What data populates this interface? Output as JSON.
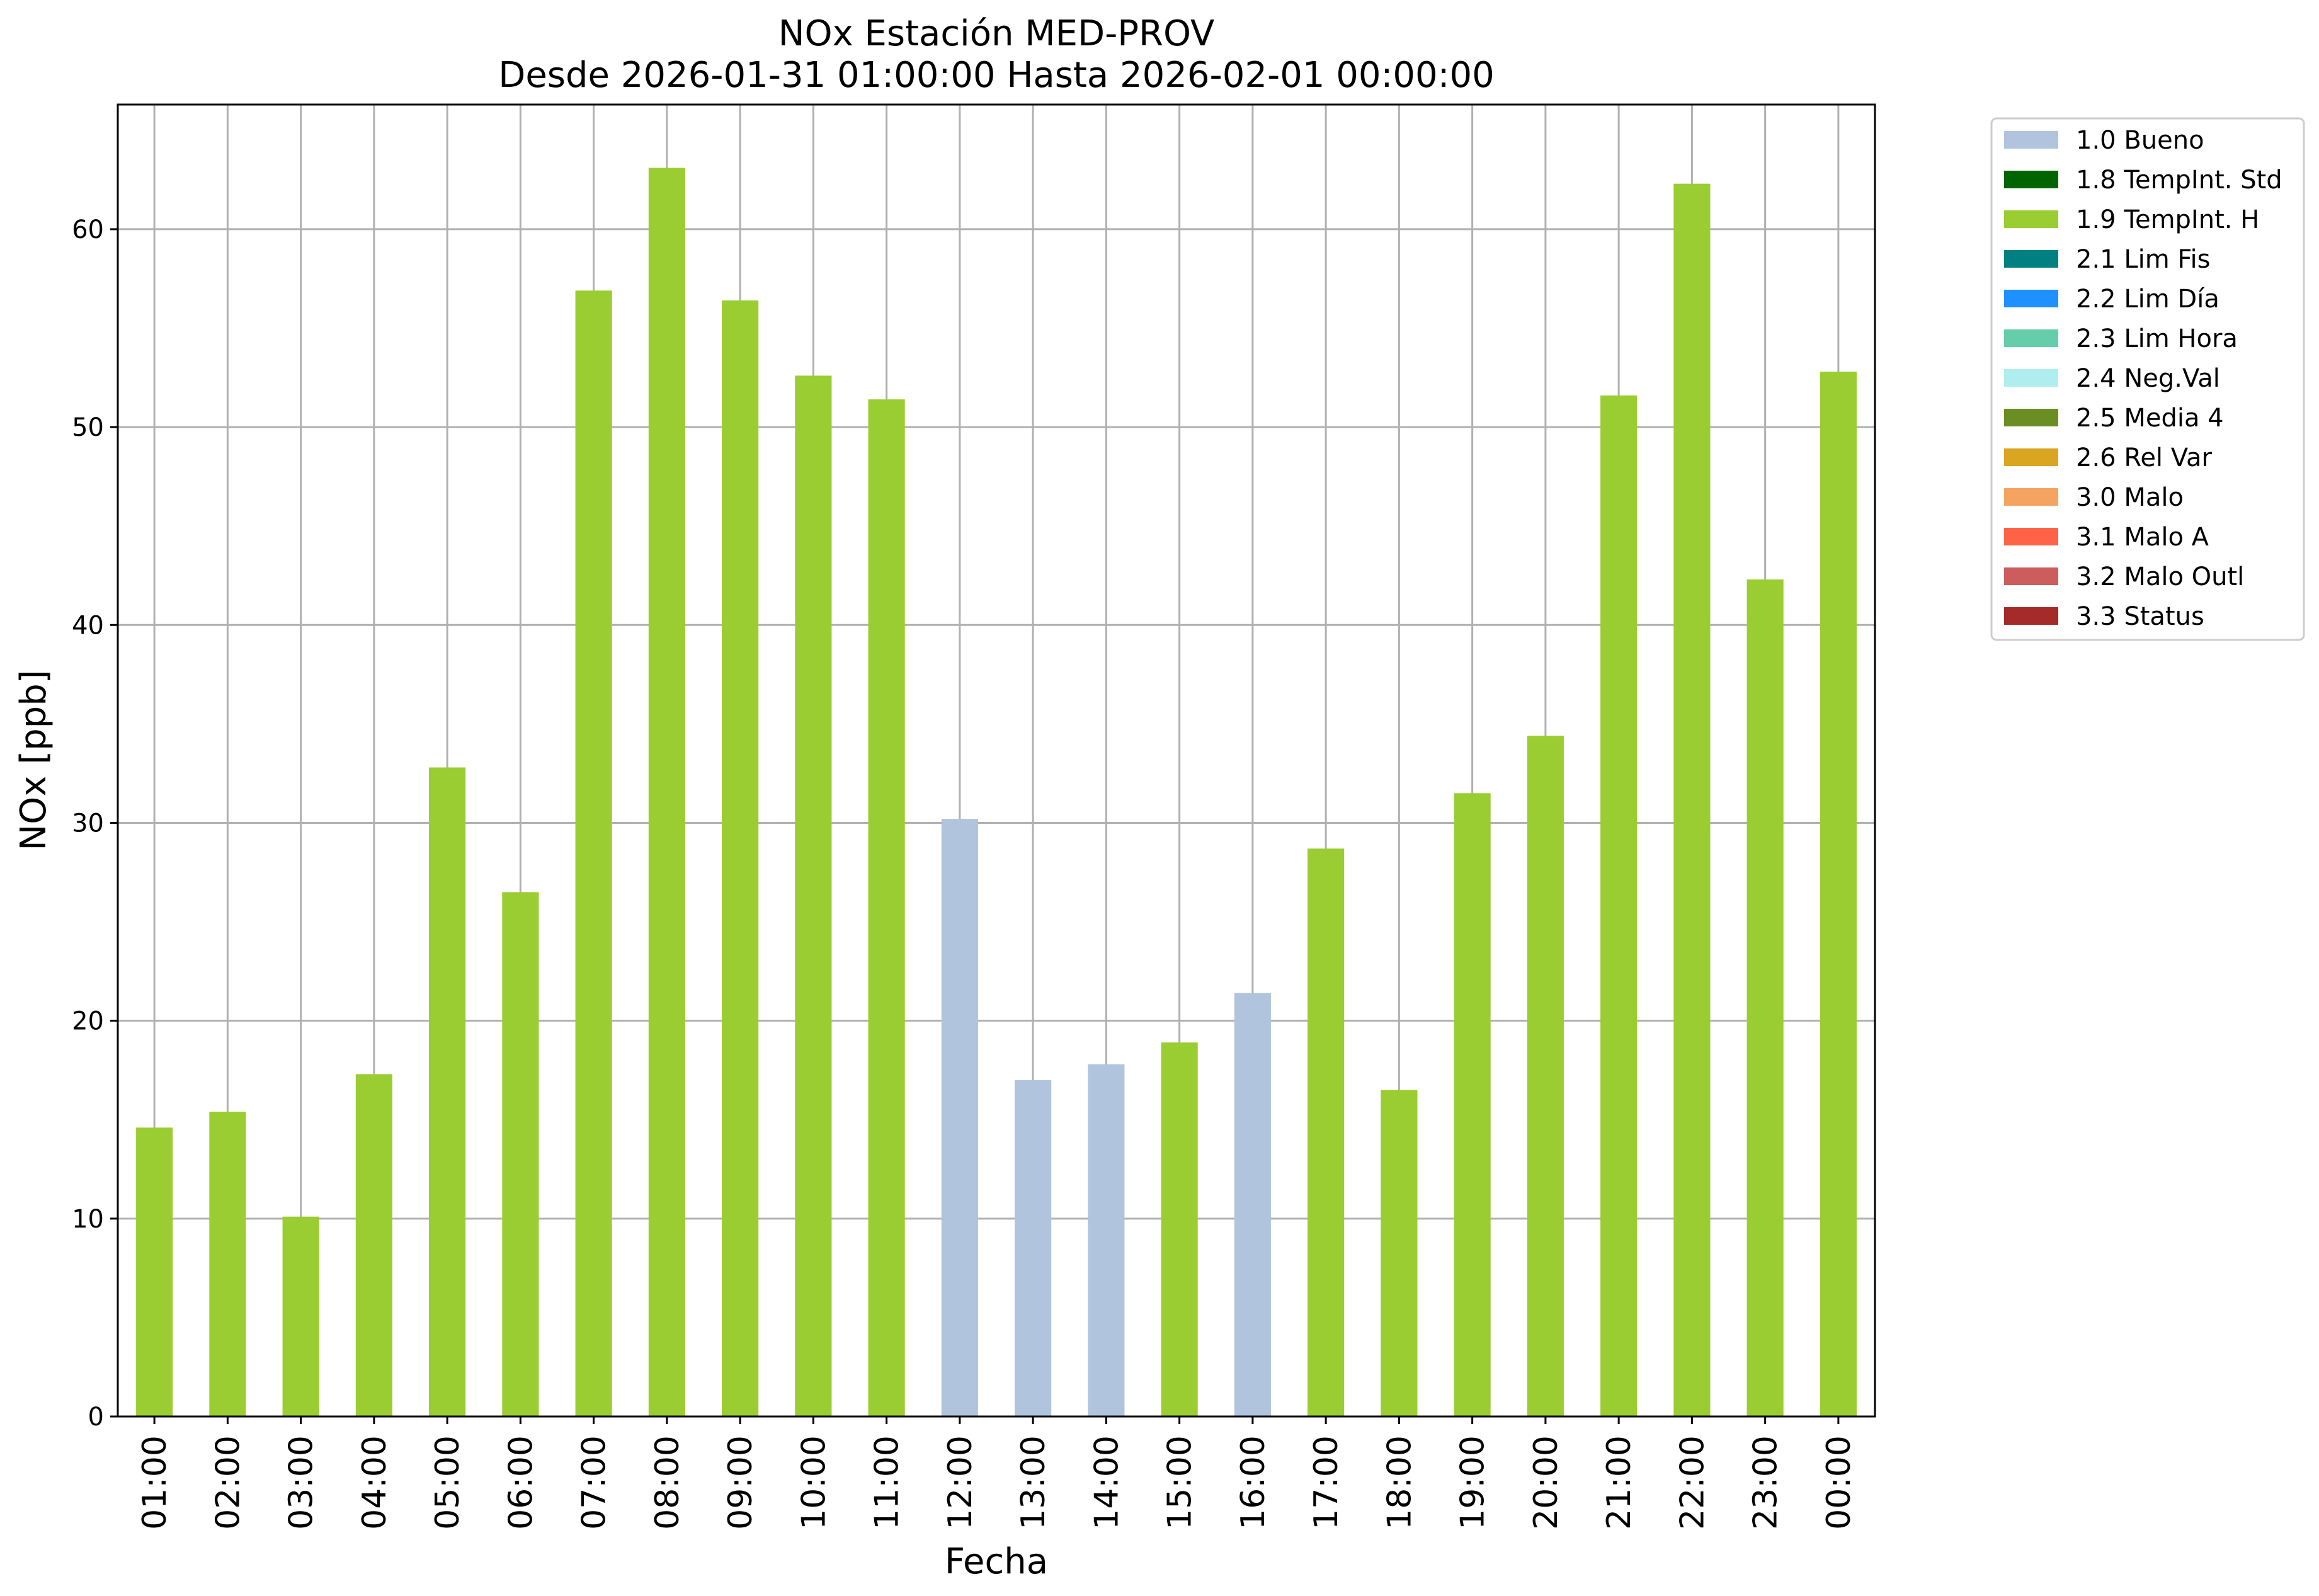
{
  "chart_data": {
    "type": "bar",
    "title": "NOx Estación MED-PROV",
    "subtitle": "Desde 2026-01-31 01:00:00 Hasta 2026-02-01 00:00:00",
    "xlabel": "Fecha",
    "ylabel": "NOx [ppb]",
    "ylim": [
      0,
      66.3
    ],
    "yticks": [
      0,
      10,
      20,
      30,
      40,
      50,
      60
    ],
    "grid": true,
    "legend_position": "outside top-right",
    "categories": [
      "01:00",
      "02:00",
      "03:00",
      "04:00",
      "05:00",
      "06:00",
      "07:00",
      "08:00",
      "09:00",
      "10:00",
      "11:00",
      "12:00",
      "13:00",
      "14:00",
      "15:00",
      "16:00",
      "17:00",
      "18:00",
      "19:00",
      "20:00",
      "21:00",
      "22:00",
      "23:00",
      "00:00"
    ],
    "values": [
      14.6,
      15.4,
      10.1,
      17.3,
      32.8,
      26.5,
      56.9,
      63.1,
      56.4,
      52.6,
      51.4,
      30.2,
      17.0,
      17.8,
      18.9,
      21.4,
      28.7,
      16.5,
      31.5,
      34.4,
      51.6,
      62.3,
      42.3,
      52.8
    ],
    "flags": [
      "1.9 TempInt. H",
      "1.9 TempInt. H",
      "1.9 TempInt. H",
      "1.9 TempInt. H",
      "1.9 TempInt. H",
      "1.9 TempInt. H",
      "1.9 TempInt. H",
      "1.9 TempInt. H",
      "1.9 TempInt. H",
      "1.9 TempInt. H",
      "1.9 TempInt. H",
      "1.0 Bueno",
      "1.0 Bueno",
      "1.0 Bueno",
      "1.9 TempInt. H",
      "1.0 Bueno",
      "1.9 TempInt. H",
      "1.9 TempInt. H",
      "1.9 TempInt. H",
      "1.9 TempInt. H",
      "1.9 TempInt. H",
      "1.9 TempInt. H",
      "1.9 TempInt. H",
      "1.9 TempInt. H"
    ],
    "legend": [
      {
        "label": "1.0 Bueno",
        "color": "#b0c4de"
      },
      {
        "label": "1.8 TempInt. Std",
        "color": "#006400"
      },
      {
        "label": "1.9 TempInt. H",
        "color": "#9acd32"
      },
      {
        "label": "2.1 Lim Fis",
        "color": "#008080"
      },
      {
        "label": "2.2 Lim Día",
        "color": "#1e90ff"
      },
      {
        "label": "2.3 Lim Hora",
        "color": "#66cdaa"
      },
      {
        "label": "2.4 Neg.Val",
        "color": "#afeeee"
      },
      {
        "label": "2.5 Media 4",
        "color": "#6b8e23"
      },
      {
        "label": "2.6 Rel Var",
        "color": "#daa520"
      },
      {
        "label": "3.0 Malo",
        "color": "#f4a460"
      },
      {
        "label": "3.1 Malo A",
        "color": "#ff6347"
      },
      {
        "label": "3.2 Malo Outl",
        "color": "#cd5c5c"
      },
      {
        "label": "3.3 Status",
        "color": "#a52a2a"
      }
    ]
  }
}
